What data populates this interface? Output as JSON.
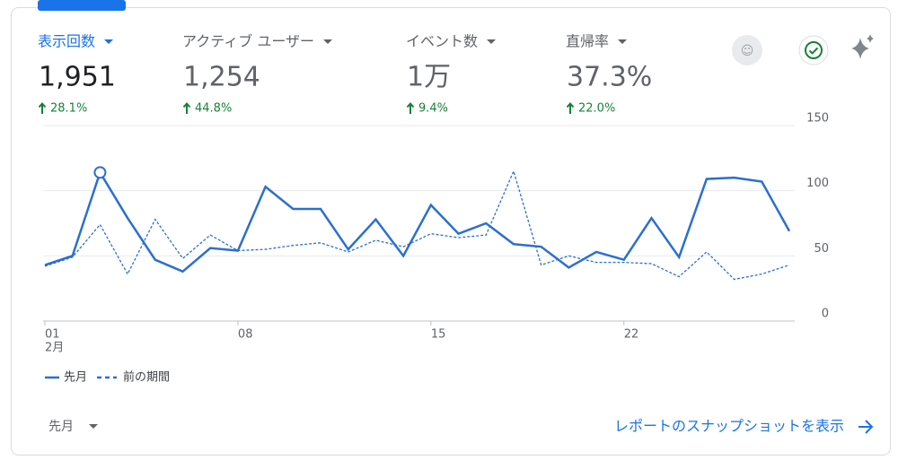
{
  "metrics": [
    {
      "label": "表示回数",
      "value": "1,951",
      "change": "28.1%"
    },
    {
      "label": "アクティブ ユーザー",
      "value": "1,254",
      "change": "44.8%"
    },
    {
      "label": "イベント数",
      "value": "1万",
      "change": "9.4%"
    },
    {
      "label": "直帰率",
      "value": "37.3%",
      "change": "22.0%"
    }
  ],
  "chart_data": {
    "type": "line",
    "categories": [
      "01",
      null,
      null,
      null,
      null,
      null,
      null,
      "08",
      null,
      null,
      null,
      null,
      null,
      null,
      "15",
      null,
      null,
      null,
      null,
      null,
      null,
      "22",
      null,
      null,
      null,
      null,
      null,
      null
    ],
    "x_period_label": "2月",
    "series": [
      {
        "name": "先月",
        "color": "#2b6fcf",
        "dash": false,
        "values": [
          43,
          50,
          114,
          79,
          47,
          38,
          56,
          54,
          103,
          86,
          86,
          55,
          78,
          50,
          89,
          67,
          75,
          59,
          57,
          41,
          53,
          47,
          79,
          49,
          109,
          110,
          107,
          69
        ]
      },
      {
        "name": "前の期間",
        "color": "#2b6fcf",
        "dash": true,
        "values": [
          42,
          49,
          74,
          36,
          78,
          48,
          66,
          54,
          55,
          58,
          60,
          53,
          62,
          57,
          67,
          64,
          66,
          115,
          43,
          50,
          45,
          45,
          44,
          34,
          53,
          32,
          36,
          43
        ]
      }
    ],
    "highlight_index": 2,
    "ylim": [
      0,
      150
    ],
    "yticks": [
      0,
      50,
      100,
      150
    ],
    "grid": true
  },
  "footer": {
    "period": "先月",
    "link": "レポートのスナップショットを表示"
  }
}
